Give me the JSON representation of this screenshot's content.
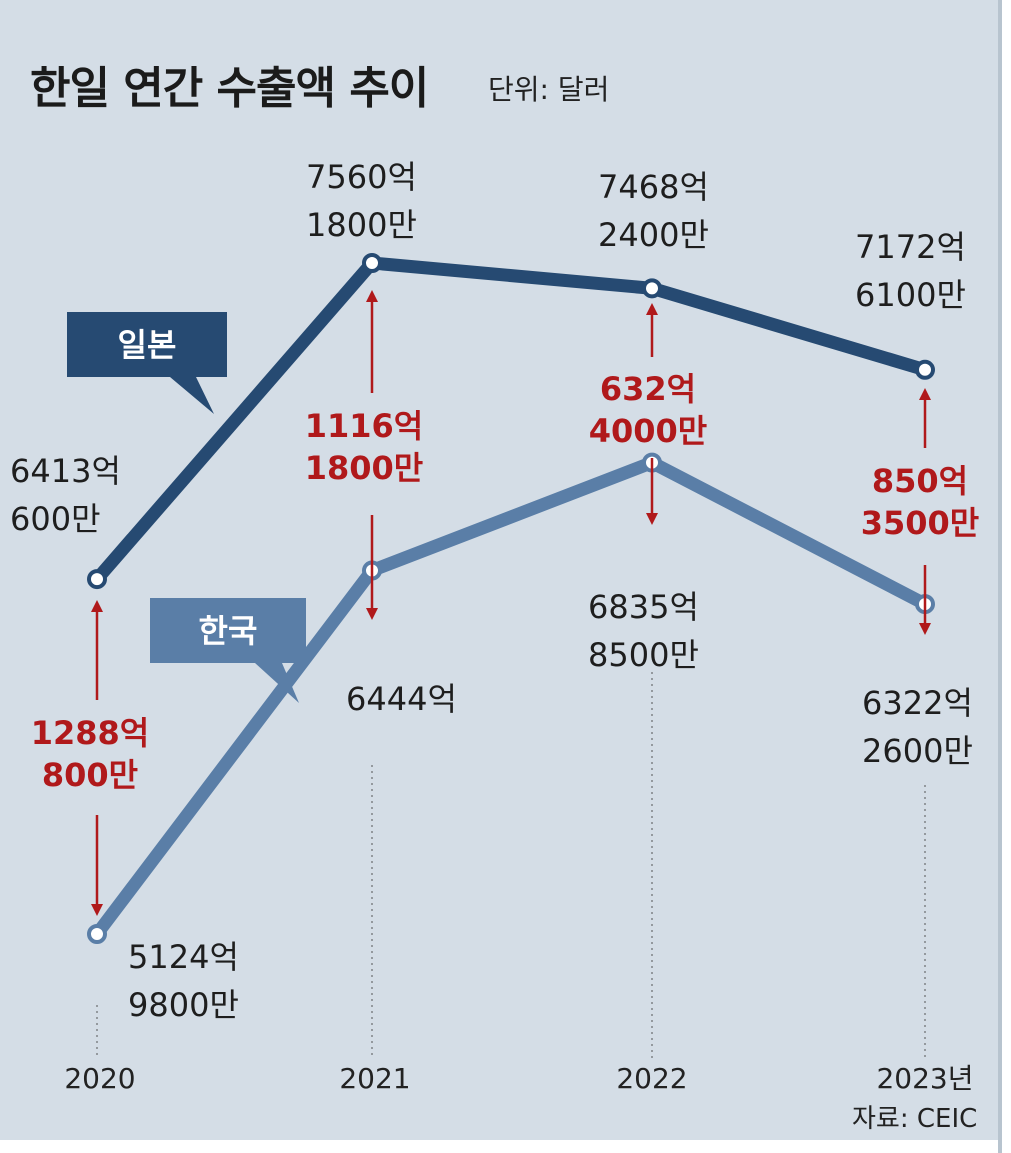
{
  "title": "한일 연간 수출액 추이",
  "unit": "단위: 달러",
  "source": "자료: CEIC",
  "colors": {
    "background": "#d4dde6",
    "japan": "#264a72",
    "korea": "#5a7ea7",
    "diff": "#b0191b"
  },
  "chart_data": {
    "type": "line",
    "title": "한일 연간 수출액 추이",
    "ylabel": "단위: 달러",
    "categories": [
      "2020",
      "2021",
      "2022",
      "2023년"
    ],
    "series": [
      {
        "name": "일본",
        "values": [
          641306000000,
          756018000000,
          746824000000,
          717261000000
        ],
        "labels": [
          [
            "6413억",
            "600만"
          ],
          [
            "7560억",
            "1800만"
          ],
          [
            "7468억",
            "2400만"
          ],
          [
            "7172억",
            "6100만"
          ]
        ]
      },
      {
        "name": "한국",
        "values": [
          512498000000,
          644400000000,
          683585000000,
          632226000000
        ],
        "labels": [
          [
            "5124억",
            "9800만"
          ],
          [
            "6444억"
          ],
          [
            "6835억",
            "8500만"
          ],
          [
            "6322억",
            "2600만"
          ]
        ]
      }
    ],
    "differences": [
      [
        "1288억",
        "800만"
      ],
      [
        "1116억",
        "1800만"
      ],
      [
        "632억",
        "4000만"
      ],
      [
        "850억",
        "3500만"
      ]
    ],
    "ylim": [
      500000000000,
      780000000000
    ],
    "grid": false,
    "legend": "callout labels"
  }
}
